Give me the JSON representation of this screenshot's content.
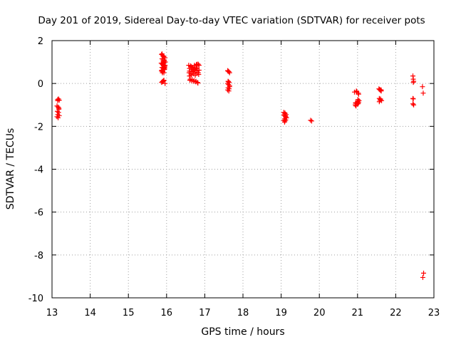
{
  "chart_data": {
    "type": "scatter",
    "title": "Day 201 of 2019, Sidereal Day-to-day VTEC variation (SDTVAR) for receiver pots",
    "xlabel": "GPS time / hours",
    "ylabel": "SDTVAR / TECUs",
    "xlim": [
      13,
      23
    ],
    "ylim": [
      -10,
      2
    ],
    "xticks": [
      13,
      14,
      15,
      16,
      17,
      18,
      19,
      20,
      21,
      22,
      23
    ],
    "yticks": [
      -10,
      -8,
      -6,
      -4,
      -2,
      0,
      2
    ],
    "grid": true,
    "marker": "plus",
    "series": [
      {
        "name": "SDTVAR",
        "color": "#ff0000",
        "x": [
          13.15,
          13.17,
          13.19,
          13.13,
          13.16,
          13.18,
          13.14,
          13.17,
          13.15,
          13.19,
          13.13,
          13.16,
          13.18,
          13.15,
          15.87,
          15.9,
          15.93,
          15.96,
          15.88,
          15.91,
          15.94,
          15.97,
          15.86,
          15.89,
          15.92,
          15.95,
          15.88,
          15.91,
          15.94,
          15.87,
          15.9,
          15.93,
          15.96,
          15.89,
          15.92,
          15.95,
          15.88,
          15.91,
          15.94,
          15.87,
          15.9,
          15.93,
          15.96,
          15.89,
          15.92,
          15.88,
          15.91,
          15.94,
          15.87,
          15.9,
          15.93,
          15.89,
          15.92,
          15.95,
          16.58,
          16.63,
          16.68,
          16.73,
          16.78,
          16.83,
          16.6,
          16.65,
          16.7,
          16.75,
          16.8,
          16.85,
          16.59,
          16.64,
          16.69,
          16.74,
          16.79,
          16.84,
          16.61,
          16.66,
          16.71,
          16.76,
          16.81,
          16.6,
          16.65,
          16.7,
          16.75,
          16.8,
          16.85,
          16.62,
          16.67,
          16.72,
          16.77,
          16.82,
          16.6,
          16.65,
          16.7,
          16.75,
          16.8,
          16.63,
          16.68,
          16.73,
          16.78,
          16.83,
          17.6,
          17.63,
          17.65,
          17.61,
          17.64,
          17.6,
          17.62,
          17.65,
          17.61,
          17.64,
          17.6,
          17.63,
          17.62,
          17.65,
          17.61,
          19.07,
          19.1,
          19.13,
          19.08,
          19.11,
          19.14,
          19.09,
          19.12,
          19.07,
          19.1,
          19.13,
          19.08,
          19.11,
          19.09,
          19.12,
          19.1,
          19.77,
          19.8,
          20.92,
          20.97,
          21.02,
          20.95,
          21.0,
          21.04,
          20.94,
          20.99,
          21.03,
          20.96,
          21.01,
          20.98,
          21.03,
          20.95,
          21.0,
          21.02,
          20.97,
          21.01,
          21.56,
          21.59,
          21.62,
          21.57,
          21.6,
          21.63,
          21.58,
          21.61,
          21.57,
          21.6,
          21.62,
          21.59,
          22.45,
          22.46,
          22.47,
          22.45,
          22.46,
          22.45,
          22.47,
          22.46,
          22.7,
          22.72,
          22.73,
          22.71
        ],
        "y": [
          -0.75,
          -0.72,
          -0.78,
          -1.05,
          -1.1,
          -1.2,
          -1.3,
          -1.35,
          -1.45,
          -1.5,
          -1.55,
          -1.6,
          -1.15,
          -0.8,
          1.35,
          1.3,
          1.25,
          1.2,
          1.15,
          1.1,
          1.05,
          1.0,
          0.95,
          0.9,
          0.85,
          0.8,
          0.75,
          0.7,
          0.65,
          0.6,
          0.55,
          0.5,
          0.85,
          0.95,
          1.0,
          0.75,
          0.62,
          0.9,
          1.1,
          0.05,
          0.1,
          0.15,
          0.0,
          0.08,
          0.12,
          1.38,
          1.28,
          0.98,
          0.58,
          0.88,
          0.72,
          0.5,
          0.82,
          0.68,
          0.85,
          0.8,
          0.75,
          0.85,
          0.88,
          0.9,
          0.7,
          0.65,
          0.6,
          0.72,
          0.68,
          0.62,
          0.5,
          0.45,
          0.55,
          0.52,
          0.48,
          0.42,
          0.15,
          0.12,
          0.1,
          0.08,
          0.05,
          0.58,
          0.78,
          0.7,
          0.63,
          0.9,
          0.85,
          0.2,
          0.18,
          0.13,
          0.1,
          0.02,
          0.35,
          0.4,
          0.45,
          0.38,
          0.6,
          0.82,
          0.55,
          0.66,
          0.73,
          0.5,
          0.6,
          0.55,
          0.5,
          0.1,
          0.05,
          0.0,
          -0.05,
          -0.1,
          -0.2,
          -0.25,
          -0.3,
          -0.35,
          0.08,
          -0.15,
          0.58,
          -1.35,
          -1.4,
          -1.45,
          -1.5,
          -1.55,
          -1.6,
          -1.65,
          -1.7,
          -1.72,
          -1.75,
          -1.6,
          -1.45,
          -1.5,
          -1.8,
          -1.55,
          -1.38,
          -1.72,
          -1.75,
          -0.4,
          -0.35,
          -0.45,
          -0.9,
          -0.85,
          -0.8,
          -1.0,
          -0.95,
          -0.9,
          -1.05,
          -0.75,
          -0.38,
          -0.5,
          -0.92,
          -0.88,
          -0.82,
          -0.4,
          -0.95,
          -0.25,
          -0.3,
          -0.35,
          -0.7,
          -0.75,
          -0.8,
          -0.28,
          -0.32,
          -0.85,
          -0.72,
          -0.3,
          -0.78,
          0.35,
          0.2,
          0.1,
          -0.7,
          -0.72,
          -0.95,
          -1.0,
          0.05,
          -0.15,
          -0.45,
          -8.85,
          -9.05
        ]
      }
    ]
  }
}
